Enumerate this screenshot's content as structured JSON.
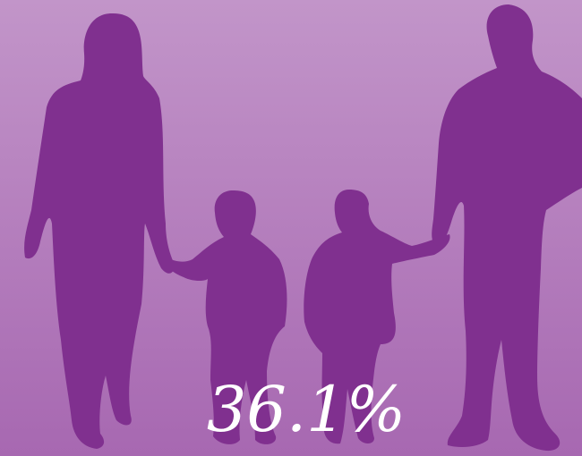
{
  "statistic": "36.1%"
}
